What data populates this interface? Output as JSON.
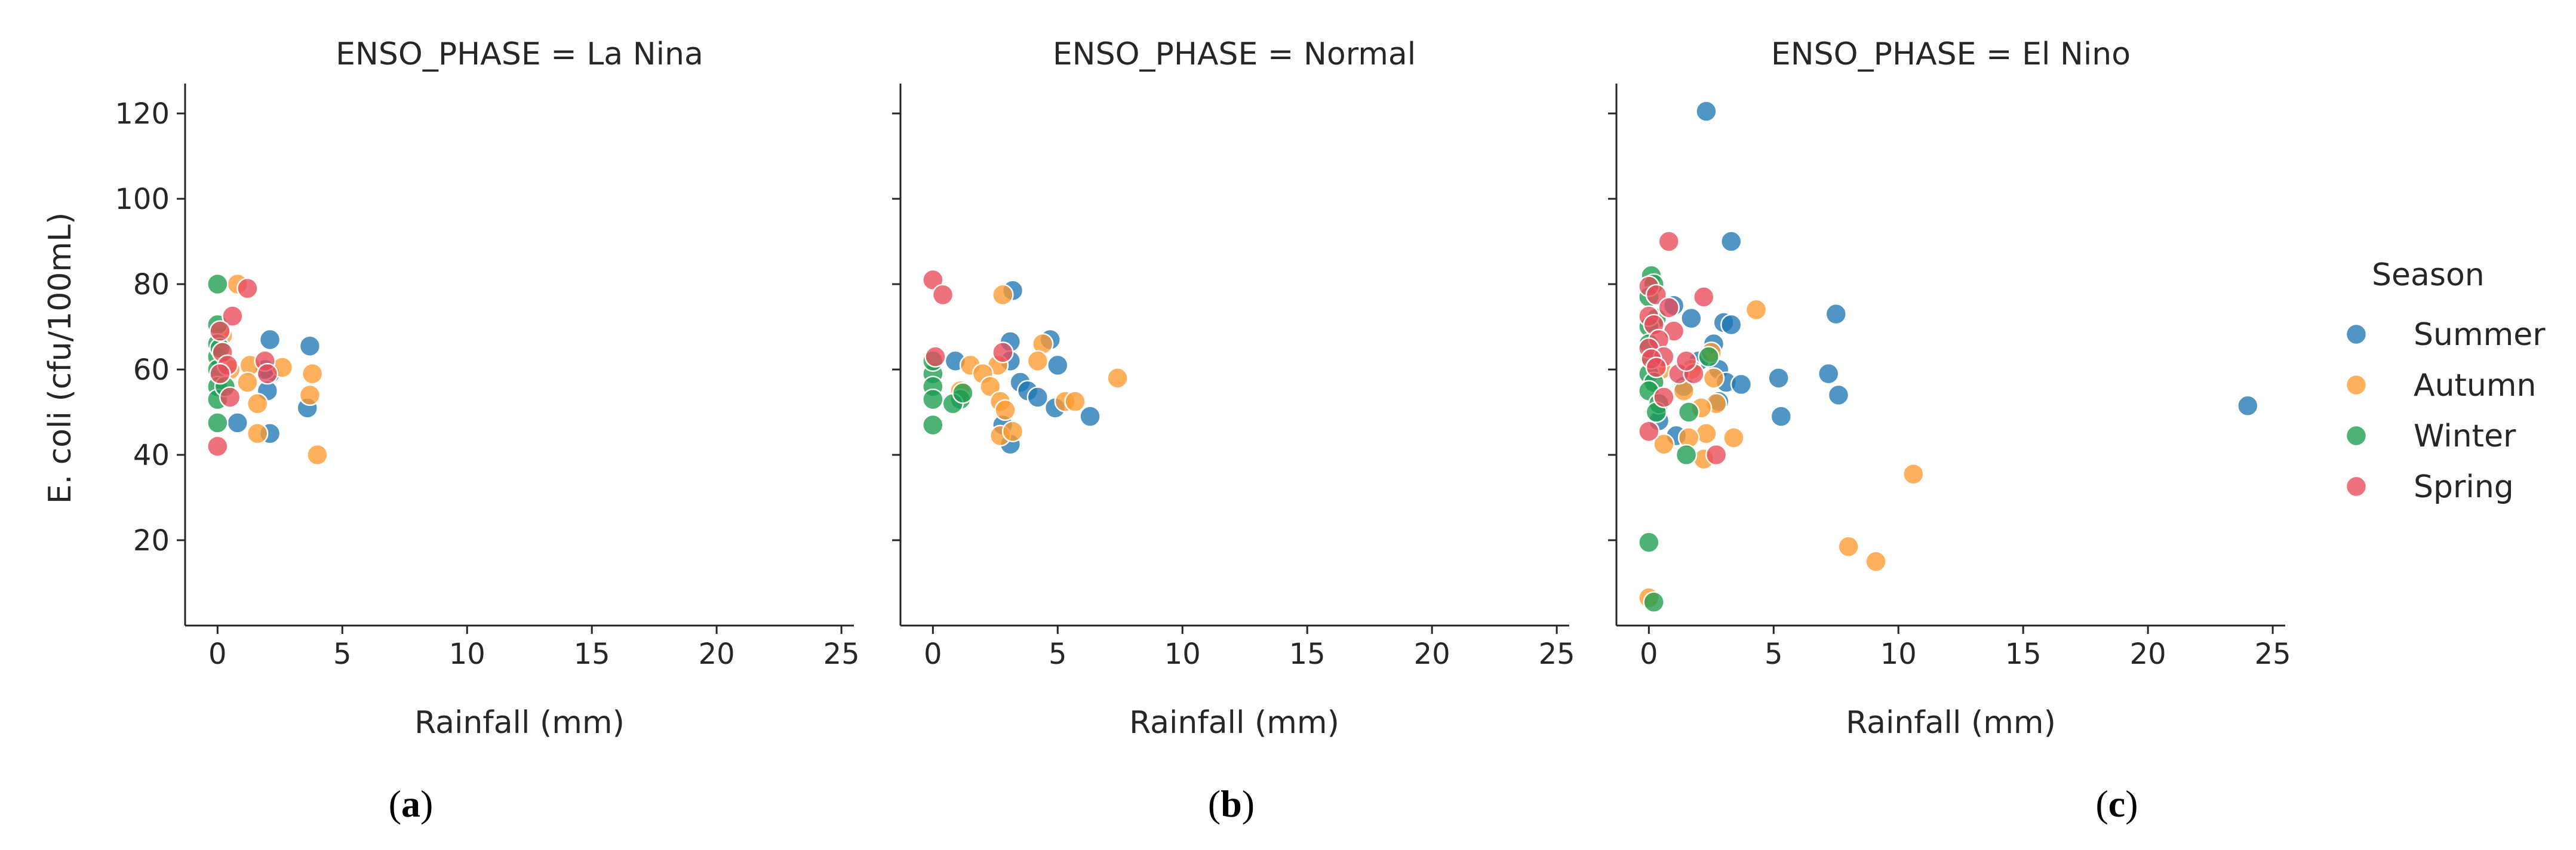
{
  "chart_data": {
    "type": "scatter",
    "x_label": "Rainfall (mm)",
    "y_label": "E. coli (cfu/100mL)",
    "xlim": [
      -1.3,
      25.5
    ],
    "ylim": [
      0,
      127
    ],
    "x_ticks": [
      0,
      5,
      10,
      15,
      20,
      25
    ],
    "y_ticks": [
      20,
      40,
      60,
      80,
      100,
      120
    ],
    "grid": false,
    "legend": {
      "title": "Season",
      "position": "right",
      "entries": [
        {
          "name": "Summer",
          "color": "#1f77b4"
        },
        {
          "name": "Autumn",
          "color": "#ff9a2e"
        },
        {
          "name": "Winter",
          "color": "#1a9e4e"
        },
        {
          "name": "Spring",
          "color": "#e84a5a"
        }
      ]
    },
    "panels": [
      {
        "title": "ENSO_PHASE = La Nina",
        "caption_letter": "a",
        "series": [
          {
            "name": "Summer",
            "points": [
              [
                2.1,
                67
              ],
              [
                3.7,
                65.5
              ],
              [
                2.1,
                59
              ],
              [
                3.6,
                51
              ],
              [
                2.1,
                45
              ],
              [
                0.8,
                47.5
              ],
              [
                2.0,
                55
              ],
              [
                1.9,
                60
              ]
            ]
          },
          {
            "name": "Autumn",
            "points": [
              [
                0.8,
                80
              ],
              [
                1.3,
                61
              ],
              [
                2.6,
                60.5
              ],
              [
                3.8,
                59
              ],
              [
                3.7,
                54
              ],
              [
                4.0,
                40
              ],
              [
                1.6,
                52
              ],
              [
                1.6,
                45
              ],
              [
                1.2,
                57
              ],
              [
                0.2,
                68
              ],
              [
                0.5,
                60
              ]
            ]
          },
          {
            "name": "Winter",
            "points": [
              [
                0.0,
                80
              ],
              [
                0.0,
                70.5
              ],
              [
                0.0,
                66
              ],
              [
                0.0,
                63
              ],
              [
                0.0,
                60
              ],
              [
                0.0,
                56
              ],
              [
                0.0,
                53
              ],
              [
                0.0,
                47.5
              ],
              [
                0.3,
                56
              ],
              [
                0.1,
                65
              ]
            ]
          },
          {
            "name": "Spring",
            "points": [
              [
                1.2,
                79
              ],
              [
                0.6,
                72.5
              ],
              [
                0.1,
                69
              ],
              [
                0.2,
                64
              ],
              [
                0.4,
                61
              ],
              [
                0.1,
                59
              ],
              [
                0.5,
                53.5
              ],
              [
                1.9,
                62
              ],
              [
                2.0,
                59
              ],
              [
                0.0,
                42
              ]
            ]
          }
        ]
      },
      {
        "title": "ENSO_PHASE = Normal",
        "caption_letter": "b",
        "series": [
          {
            "name": "Summer",
            "points": [
              [
                3.2,
                78.5
              ],
              [
                3.1,
                66.5
              ],
              [
                4.7,
                67
              ],
              [
                3.1,
                62
              ],
              [
                0.9,
                62
              ],
              [
                3.5,
                57
              ],
              [
                3.8,
                55
              ],
              [
                4.2,
                53.5
              ],
              [
                5.0,
                61
              ],
              [
                4.9,
                51
              ],
              [
                6.3,
                49
              ],
              [
                3.1,
                42.5
              ],
              [
                2.8,
                47
              ]
            ]
          },
          {
            "name": "Autumn",
            "points": [
              [
                2.8,
                77.5
              ],
              [
                4.4,
                66
              ],
              [
                4.2,
                62
              ],
              [
                2.6,
                61
              ],
              [
                1.5,
                61
              ],
              [
                2.0,
                59
              ],
              [
                2.3,
                56
              ],
              [
                2.7,
                52.5
              ],
              [
                2.9,
                50.5
              ],
              [
                2.7,
                44.5
              ],
              [
                3.2,
                45.5
              ],
              [
                5.3,
                52.5
              ],
              [
                5.7,
                52.5
              ],
              [
                7.4,
                58
              ],
              [
                1.1,
                55
              ]
            ]
          },
          {
            "name": "Winter",
            "points": [
              [
                0.0,
                59
              ],
              [
                0.0,
                56
              ],
              [
                0.0,
                53
              ],
              [
                0.0,
                47
              ],
              [
                1.1,
                53
              ],
              [
                0.8,
                52
              ],
              [
                1.2,
                54.5
              ],
              [
                0.0,
                62
              ]
            ]
          },
          {
            "name": "Spring",
            "points": [
              [
                0.0,
                81
              ],
              [
                0.4,
                77.5
              ],
              [
                0.1,
                63
              ],
              [
                2.8,
                64
              ]
            ]
          }
        ]
      },
      {
        "title": "ENSO_PHASE = El Nino",
        "caption_letter": "c",
        "series": [
          {
            "name": "Summer",
            "points": [
              [
                2.3,
                120.5
              ],
              [
                3.3,
                90
              ],
              [
                3.0,
                71
              ],
              [
                3.3,
                70.5
              ],
              [
                1.0,
                75
              ],
              [
                1.7,
                72
              ],
              [
                2.6,
                66
              ],
              [
                2.8,
                60
              ],
              [
                3.1,
                57
              ],
              [
                3.7,
                56.5
              ],
              [
                2.8,
                52.5
              ],
              [
                5.2,
                58
              ],
              [
                5.3,
                49
              ],
              [
                7.2,
                59
              ],
              [
                7.5,
                73
              ],
              [
                7.6,
                54
              ],
              [
                24.0,
                51.5
              ],
              [
                1.1,
                44.5
              ],
              [
                0.4,
                48
              ],
              [
                2.0,
                62
              ],
              [
                1.4,
                56
              ]
            ]
          },
          {
            "name": "Autumn",
            "points": [
              [
                4.3,
                74
              ],
              [
                2.7,
                52
              ],
              [
                2.1,
                51
              ],
              [
                2.3,
                45
              ],
              [
                2.2,
                39
              ],
              [
                3.4,
                44
              ],
              [
                1.6,
                44
              ],
              [
                0.6,
                42.5
              ],
              [
                1.4,
                55
              ],
              [
                1.7,
                60
              ],
              [
                0.5,
                60
              ],
              [
                2.5,
                64
              ],
              [
                2.6,
                58
              ],
              [
                10.6,
                35.5
              ],
              [
                8.0,
                18.5
              ],
              [
                9.1,
                15
              ],
              [
                0.0,
                6.5
              ]
            ]
          },
          {
            "name": "Winter",
            "points": [
              [
                0.1,
                82
              ],
              [
                0.2,
                80
              ],
              [
                0.0,
                77
              ],
              [
                0.3,
                72
              ],
              [
                0.0,
                70
              ],
              [
                0.0,
                66
              ],
              [
                0.1,
                62
              ],
              [
                0.0,
                59
              ],
              [
                0.2,
                57
              ],
              [
                0.0,
                55
              ],
              [
                0.4,
                52
              ],
              [
                0.3,
                50
              ],
              [
                1.6,
                50
              ],
              [
                1.5,
                40
              ],
              [
                2.4,
                63
              ],
              [
                0.0,
                19.5
              ],
              [
                0.2,
                5.5
              ]
            ]
          },
          {
            "name": "Spring",
            "points": [
              [
                0.8,
                90
              ],
              [
                0.0,
                79.5
              ],
              [
                0.3,
                77.5
              ],
              [
                0.8,
                74.5
              ],
              [
                2.2,
                77
              ],
              [
                0.0,
                72.5
              ],
              [
                0.2,
                70.5
              ],
              [
                1.0,
                69
              ],
              [
                0.4,
                67
              ],
              [
                0.0,
                65
              ],
              [
                0.6,
                63
              ],
              [
                0.1,
                62.5
              ],
              [
                0.3,
                60.5
              ],
              [
                1.2,
                59
              ],
              [
                1.8,
                59
              ],
              [
                0.6,
                53.5
              ],
              [
                0.0,
                45.5
              ],
              [
                2.7,
                40
              ],
              [
                1.5,
                62
              ]
            ]
          }
        ]
      }
    ]
  }
}
